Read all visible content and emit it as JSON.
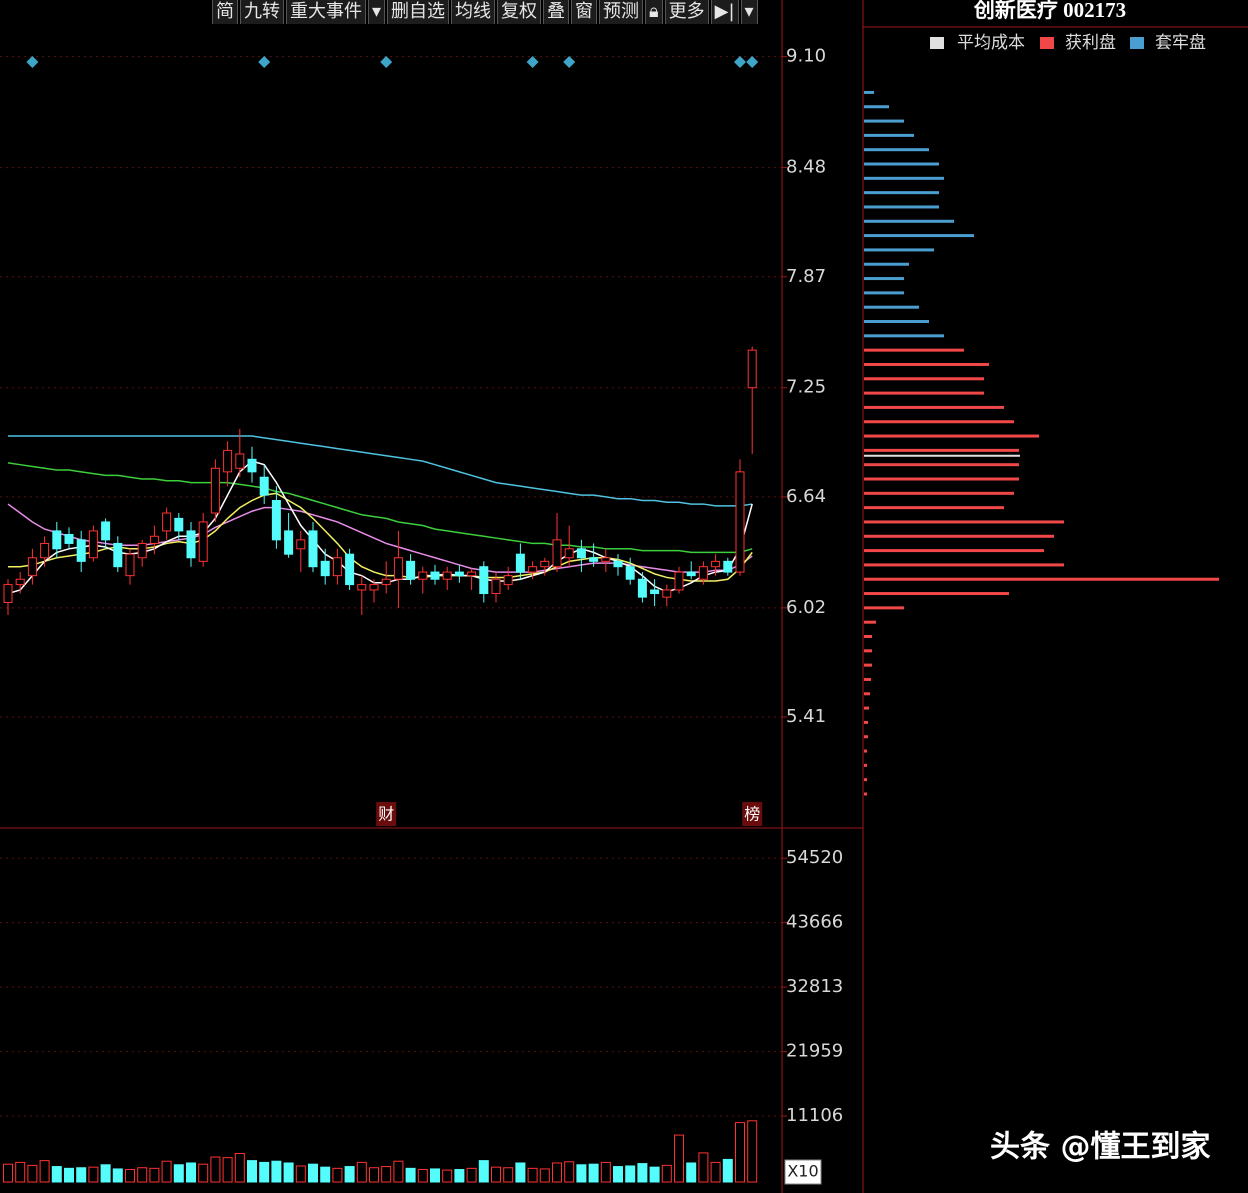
{
  "toolbar": {
    "buttons": [
      "简",
      "九转",
      "重大事件",
      "删自选",
      "均线",
      "复权",
      "叠",
      "窗",
      "预测",
      "更多"
    ]
  },
  "chart_data": [
    {
      "type": "candlestick",
      "open": [
        6.05,
        6.15,
        6.2,
        6.3,
        6.45,
        6.43,
        6.4,
        6.3,
        6.5,
        6.38,
        6.2,
        6.3,
        6.38,
        6.45,
        6.52,
        6.45,
        6.28,
        6.55,
        6.78,
        6.8,
        6.85,
        6.75,
        6.62,
        6.45,
        6.35,
        6.45,
        6.28,
        6.2,
        6.32,
        6.12,
        6.12,
        6.15,
        6.18,
        6.28,
        6.18,
        6.22,
        6.18,
        6.22,
        6.2,
        6.25,
        6.1,
        6.15,
        6.32,
        6.22,
        6.25,
        6.25,
        6.3,
        6.35,
        6.3,
        6.28,
        6.28,
        6.25,
        6.18,
        6.12,
        6.08,
        6.12,
        6.22,
        6.18,
        6.25,
        6.28,
        6.22,
        7.25
      ],
      "high": [
        6.18,
        6.22,
        6.35,
        6.42,
        6.5,
        6.47,
        6.45,
        6.48,
        6.52,
        6.42,
        6.35,
        6.4,
        6.48,
        6.58,
        6.55,
        6.5,
        6.55,
        6.85,
        6.95,
        7.02,
        6.92,
        6.82,
        6.7,
        6.55,
        6.45,
        6.5,
        6.35,
        6.35,
        6.35,
        6.2,
        6.18,
        6.28,
        6.45,
        6.32,
        6.25,
        6.26,
        6.25,
        6.26,
        6.24,
        6.28,
        6.22,
        6.25,
        6.38,
        6.28,
        6.3,
        6.55,
        6.48,
        6.4,
        6.38,
        6.35,
        6.32,
        6.3,
        6.22,
        6.18,
        6.15,
        6.25,
        6.28,
        6.28,
        6.32,
        6.3,
        6.85,
        7.48
      ],
      "low": [
        5.98,
        6.1,
        6.15,
        6.25,
        6.3,
        6.35,
        6.22,
        6.28,
        6.35,
        6.22,
        6.15,
        6.25,
        6.32,
        6.4,
        6.4,
        6.25,
        6.25,
        6.5,
        6.7,
        6.75,
        6.72,
        6.6,
        6.35,
        6.3,
        6.22,
        6.22,
        6.15,
        6.15,
        6.12,
        5.98,
        6.05,
        6.1,
        6.02,
        6.15,
        6.1,
        6.15,
        6.12,
        6.16,
        6.12,
        6.05,
        6.05,
        6.12,
        6.18,
        6.18,
        6.2,
        6.22,
        6.25,
        6.22,
        6.25,
        6.22,
        6.2,
        6.15,
        6.05,
        6.03,
        6.03,
        6.1,
        6.18,
        6.15,
        6.2,
        6.2,
        6.2,
        6.88
      ],
      "close": [
        6.15,
        6.18,
        6.3,
        6.38,
        6.35,
        6.38,
        6.28,
        6.45,
        6.4,
        6.25,
        6.32,
        6.38,
        6.42,
        6.55,
        6.45,
        6.3,
        6.5,
        6.8,
        6.9,
        6.88,
        6.78,
        6.65,
        6.4,
        6.32,
        6.4,
        6.25,
        6.2,
        6.3,
        6.15,
        6.15,
        6.15,
        6.18,
        6.3,
        6.18,
        6.22,
        6.18,
        6.22,
        6.2,
        6.22,
        6.1,
        6.18,
        6.2,
        6.22,
        6.25,
        6.28,
        6.4,
        6.35,
        6.3,
        6.28,
        6.3,
        6.25,
        6.18,
        6.08,
        6.1,
        6.12,
        6.22,
        6.2,
        6.25,
        6.28,
        6.22,
        6.78,
        7.46
      ],
      "up_color": "#ff3232",
      "down_color": "#54fcfc",
      "ylim": [
        4.79,
        9.26
      ],
      "yticks": [
        {
          "value": 9.1,
          "label": "9.10"
        },
        8.48,
        7.87,
        7.25,
        6.64,
        6.02,
        5.41
      ],
      "grid": true,
      "ma_lines": [
        {
          "color": "#4fc3e0",
          "values": [
            6.98,
            6.98,
            6.98,
            6.98,
            6.98,
            6.98,
            6.98,
            6.98,
            6.98,
            6.98,
            6.98,
            6.98,
            6.98,
            6.98,
            6.98,
            6.98,
            6.98,
            6.98,
            6.98,
            6.98,
            6.98,
            6.97,
            6.96,
            6.95,
            6.94,
            6.93,
            6.92,
            6.91,
            6.9,
            6.89,
            6.88,
            6.87,
            6.86,
            6.85,
            6.84,
            6.82,
            6.8,
            6.78,
            6.76,
            6.74,
            6.72,
            6.71,
            6.7,
            6.69,
            6.68,
            6.67,
            6.66,
            6.65,
            6.65,
            6.64,
            6.63,
            6.63,
            6.62,
            6.62,
            6.61,
            6.61,
            6.6,
            6.6,
            6.59,
            6.59,
            6.59,
            6.6
          ]
        },
        {
          "color": "#3ccf3c",
          "values": [
            6.83,
            6.82,
            6.81,
            6.8,
            6.79,
            6.79,
            6.78,
            6.77,
            6.76,
            6.76,
            6.75,
            6.74,
            6.74,
            6.73,
            6.73,
            6.72,
            6.72,
            6.72,
            6.72,
            6.71,
            6.7,
            6.69,
            6.67,
            6.66,
            6.64,
            6.62,
            6.6,
            6.58,
            6.56,
            6.54,
            6.53,
            6.52,
            6.5,
            6.49,
            6.48,
            6.46,
            6.45,
            6.44,
            6.43,
            6.42,
            6.41,
            6.4,
            6.39,
            6.38,
            6.38,
            6.37,
            6.37,
            6.36,
            6.36,
            6.35,
            6.35,
            6.35,
            6.34,
            6.34,
            6.34,
            6.34,
            6.33,
            6.33,
            6.33,
            6.33,
            6.33,
            6.35
          ]
        },
        {
          "color": "#e88ce8",
          "values": [
            6.6,
            6.55,
            6.5,
            6.46,
            6.44,
            6.42,
            6.4,
            6.39,
            6.38,
            6.37,
            6.37,
            6.37,
            6.38,
            6.39,
            6.4,
            6.41,
            6.43,
            6.47,
            6.5,
            6.53,
            6.56,
            6.58,
            6.58,
            6.57,
            6.56,
            6.54,
            6.52,
            6.5,
            6.47,
            6.44,
            6.41,
            6.38,
            6.36,
            6.34,
            6.32,
            6.3,
            6.28,
            6.26,
            6.24,
            6.23,
            6.22,
            6.22,
            6.22,
            6.22,
            6.23,
            6.24,
            6.25,
            6.26,
            6.27,
            6.27,
            6.27,
            6.26,
            6.25,
            6.24,
            6.23,
            6.22,
            6.22,
            6.22,
            6.23,
            6.23,
            6.26,
            6.31
          ]
        },
        {
          "color": "#f0f060",
          "values": [
            6.25,
            6.25,
            6.26,
            6.28,
            6.3,
            6.31,
            6.32,
            6.33,
            6.35,
            6.36,
            6.35,
            6.35,
            6.36,
            6.38,
            6.39,
            6.38,
            6.4,
            6.45,
            6.52,
            6.58,
            6.62,
            6.65,
            6.66,
            6.62,
            6.58,
            6.52,
            6.45,
            6.38,
            6.3,
            6.25,
            6.22,
            6.2,
            6.2,
            6.19,
            6.19,
            6.2,
            6.2,
            6.2,
            6.2,
            6.19,
            6.19,
            6.19,
            6.2,
            6.21,
            6.22,
            6.25,
            6.28,
            6.29,
            6.3,
            6.3,
            6.29,
            6.27,
            6.24,
            6.21,
            6.19,
            6.18,
            6.17,
            6.17,
            6.17,
            6.18,
            6.24,
            6.33
          ]
        },
        {
          "color": "#ffffff",
          "values": [
            6.1,
            6.12,
            6.2,
            6.28,
            6.33,
            6.35,
            6.36,
            6.37,
            6.36,
            6.33,
            6.32,
            6.33,
            6.35,
            6.39,
            6.42,
            6.42,
            6.44,
            6.52,
            6.65,
            6.78,
            6.84,
            6.82,
            6.72,
            6.6,
            6.48,
            6.4,
            6.32,
            6.28,
            6.22,
            6.2,
            6.16,
            6.16,
            6.18,
            6.18,
            6.2,
            6.2,
            6.21,
            6.2,
            6.2,
            6.18,
            6.17,
            6.17,
            6.18,
            6.2,
            6.22,
            6.28,
            6.32,
            6.35,
            6.33,
            6.3,
            6.28,
            6.25,
            6.2,
            6.14,
            6.11,
            6.13,
            6.16,
            6.2,
            6.22,
            6.23,
            6.35,
            6.6
          ]
        }
      ],
      "event_markers": {
        "color": "#3fa5c8",
        "indices": [
          2,
          21,
          31,
          43,
          46,
          60,
          61
        ]
      },
      "notes": [
        {
          "index": 31,
          "label": "财"
        },
        {
          "index": 61,
          "label": "榜"
        }
      ]
    },
    {
      "type": "volume",
      "values": [
        3000,
        3300,
        2800,
        3600,
        2600,
        2300,
        2400,
        2500,
        2900,
        2200,
        2100,
        2400,
        2300,
        3500,
        2900,
        3200,
        3000,
        4200,
        4100,
        4800,
        3600,
        3300,
        3500,
        3200,
        2700,
        3000,
        2500,
        2300,
        2600,
        3300,
        2400,
        2600,
        3500,
        2300,
        2100,
        2200,
        2000,
        2100,
        2300,
        3600,
        2500,
        2400,
        3200,
        2300,
        2200,
        3200,
        3400,
        2900,
        3000,
        3300,
        2600,
        2700,
        3100,
        2500,
        2800,
        7900,
        3200,
        4900,
        3300,
        3800,
        10000,
        10300
      ],
      "ylim": [
        0,
        59600
      ],
      "yticks": [
        54520,
        43666,
        32813,
        21959,
        11106
      ],
      "grid": true,
      "unit_label": "X10"
    },
    {
      "type": "chip",
      "title": "创新医疗 002173",
      "xlim": [
        0,
        385
      ],
      "series": [
        {
          "name": "获利盘",
          "color": "#f04848",
          "prices": [
            4.98,
            5.06,
            5.14,
            5.22,
            5.3,
            5.38,
            5.46,
            5.54,
            5.62,
            5.7,
            5.78,
            5.86,
            5.94,
            6.02,
            6.1,
            6.18,
            6.26,
            6.34,
            6.42,
            6.5,
            6.58,
            6.66,
            6.74,
            6.82,
            6.9,
            6.98,
            7.06,
            7.14,
            7.22,
            7.3,
            7.38,
            7.46
          ],
          "values": [
            3,
            3,
            3,
            3,
            4,
            4,
            5,
            6,
            7,
            8,
            8,
            8,
            12,
            40,
            145,
            355,
            200,
            180,
            190,
            200,
            140,
            150,
            155,
            155,
            155,
            175,
            150,
            140,
            120,
            120,
            125,
            100
          ]
        },
        {
          "name": "套牢盘",
          "color": "#4a9fd0",
          "prices": [
            7.54,
            7.62,
            7.7,
            7.78,
            7.86,
            7.94,
            8.02,
            8.1,
            8.18,
            8.26,
            8.34,
            8.42,
            8.5,
            8.58,
            8.66,
            8.74,
            8.82,
            8.9
          ],
          "values": [
            80,
            65,
            55,
            40,
            40,
            45,
            70,
            110,
            90,
            75,
            75,
            80,
            75,
            65,
            50,
            40,
            25,
            10
          ]
        }
      ],
      "average_cost": {
        "name": "平均成本",
        "color": "#e0e0e0",
        "value": 6.87
      }
    }
  ],
  "watermark": "头条 @懂王到家"
}
